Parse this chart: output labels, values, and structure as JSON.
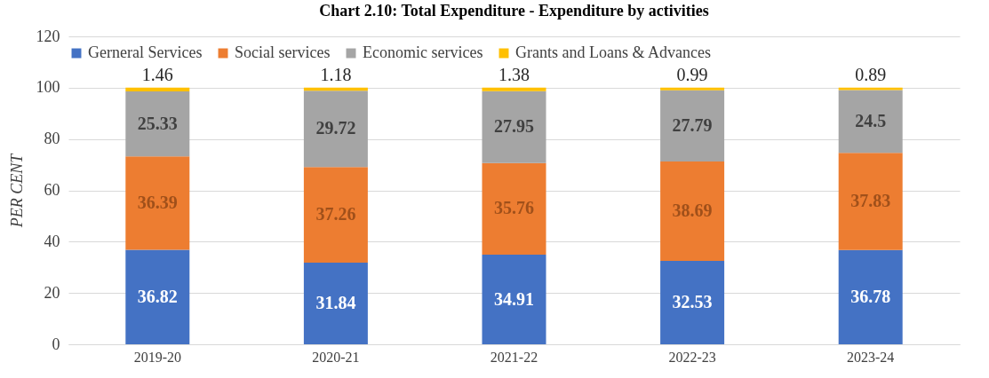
{
  "chart_data": {
    "type": "bar",
    "title": "Chart 2.10: Total Expenditure - Expenditure by activities",
    "ylabel": "PER CENT",
    "categories": [
      "2019-20",
      "2020-21",
      "2021-22",
      "2022-23",
      "2023-24"
    ],
    "stacked": true,
    "series": [
      {
        "name": "Gerneral Services",
        "color": "#4472c4",
        "values": [
          36.82,
          31.84,
          34.91,
          32.53,
          36.78
        ]
      },
      {
        "name": "Social services",
        "color": "#ed7d31",
        "values": [
          36.39,
          37.26,
          35.76,
          38.69,
          37.83
        ]
      },
      {
        "name": "Economic services",
        "color": "#a5a5a5",
        "values": [
          25.33,
          29.72,
          27.95,
          27.79,
          24.5
        ]
      },
      {
        "name": "Grants and Loans & Advances",
        "color": "#ffc000",
        "values": [
          1.46,
          1.18,
          1.38,
          0.99,
          0.89
        ]
      }
    ],
    "ylim": [
      0,
      120
    ],
    "yticks": [
      0,
      20,
      40,
      60,
      80,
      100,
      120
    ],
    "grid": "y",
    "legend": "top",
    "data_labels": true
  }
}
